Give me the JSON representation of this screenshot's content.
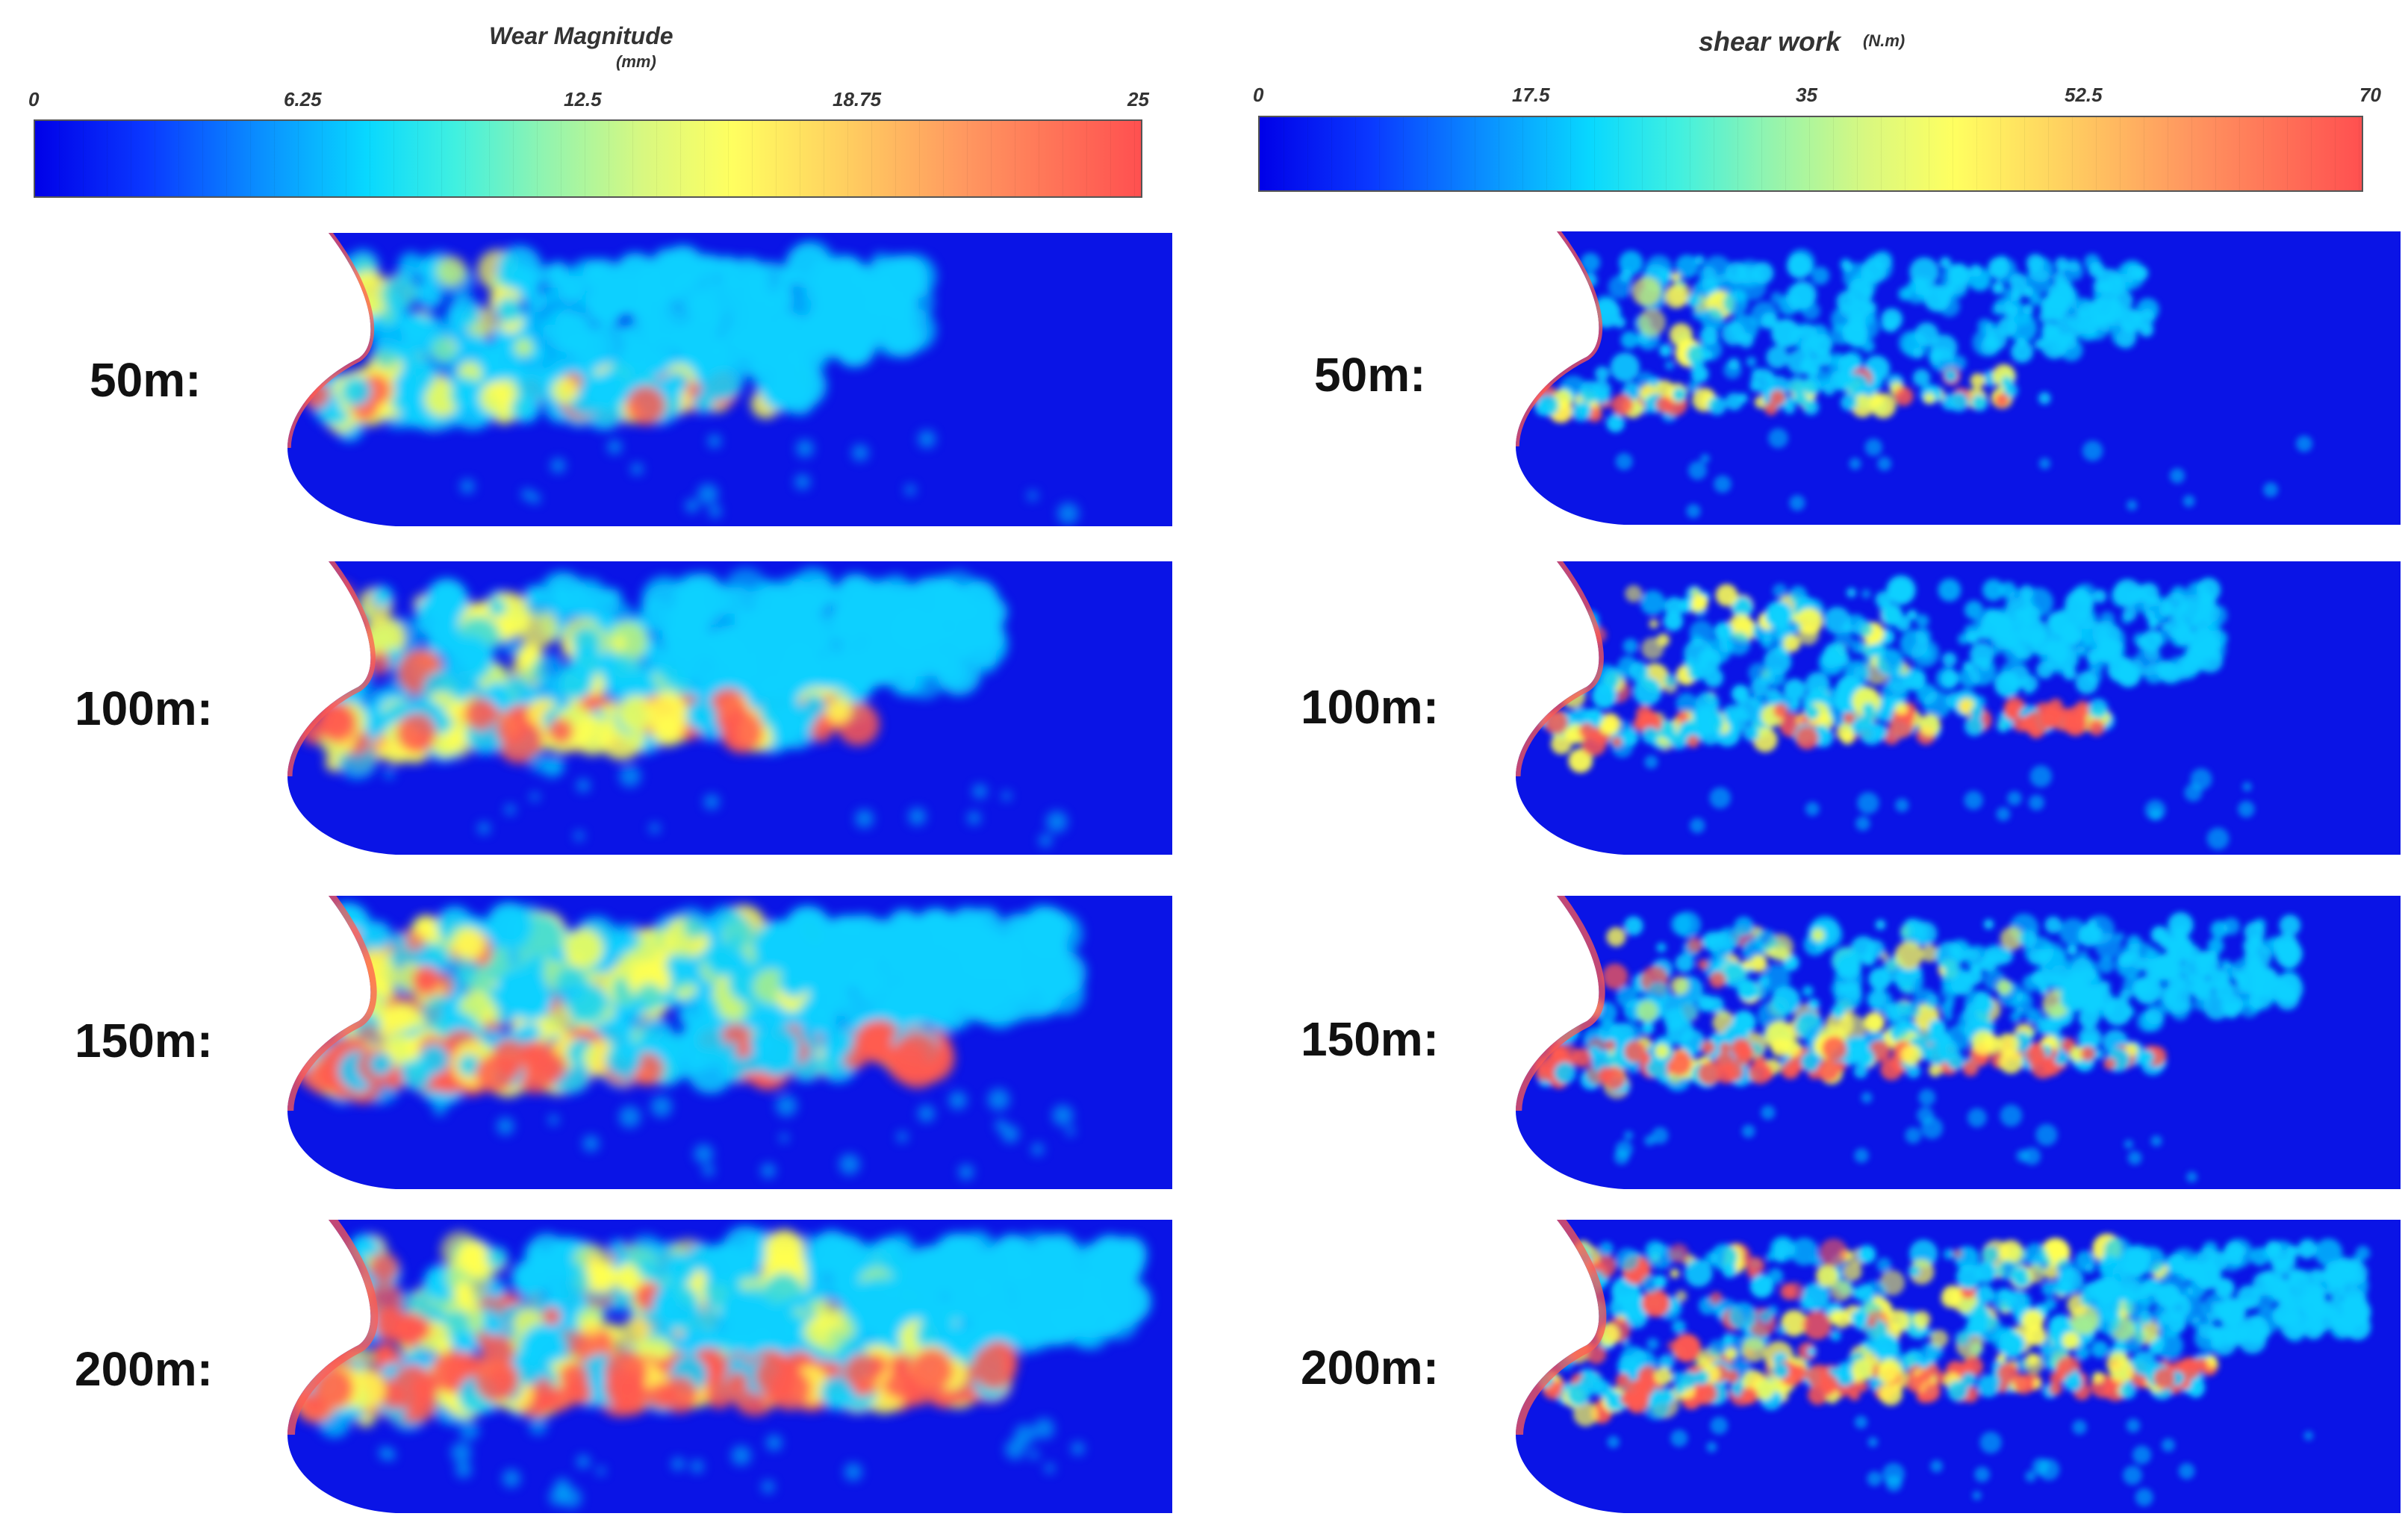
{
  "left_colorbar": {
    "title": "Wear Magnitude",
    "unit": "(mm)",
    "ticks": [
      "0",
      "6.25",
      "12.5",
      "18.75",
      "25"
    ],
    "min": 0,
    "max": 25
  },
  "right_colorbar": {
    "title": "shear work",
    "unit": "(N.m)",
    "ticks": [
      "0",
      "17.5",
      "35",
      "52.5",
      "70"
    ],
    "min": 0,
    "max": 70
  },
  "rows": [
    {
      "label": "50m:",
      "intensity": 0.25
    },
    {
      "label": "100m:",
      "intensity": 0.5
    },
    {
      "label": "150m:",
      "intensity": 0.75
    },
    {
      "label": "200m:",
      "intensity": 1.0
    }
  ],
  "colors": {
    "background_blue": "#0a14e6",
    "low": "#08d0ff",
    "mid": "#ffff50",
    "high": "#ff5a50"
  }
}
